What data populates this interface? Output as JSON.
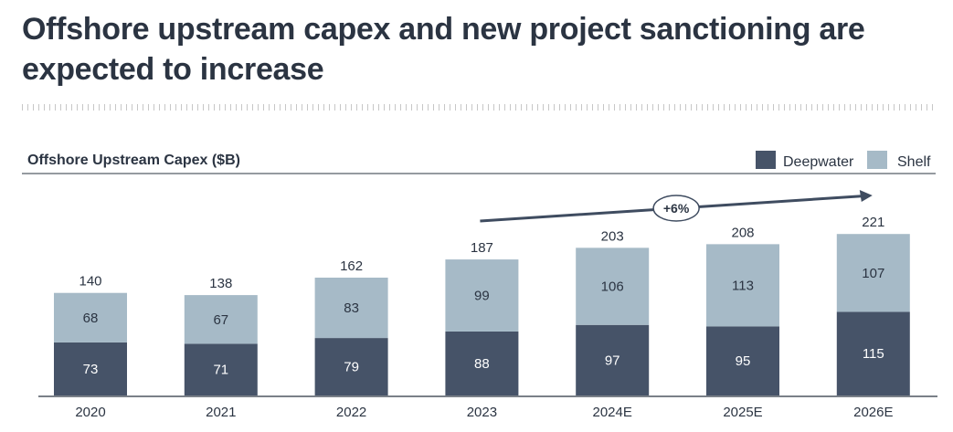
{
  "page": {
    "title": "Offshore upstream capex and new project sanctioning are expected to increase"
  },
  "chart_data": {
    "type": "bar",
    "stacked": true,
    "title": "Offshore Upstream Capex ($B)",
    "categories": [
      "2020",
      "2021",
      "2022",
      "2023",
      "2024E",
      "2025E",
      "2026E"
    ],
    "series": [
      {
        "name": "Deepwater",
        "color": "#465368",
        "values": [
          73,
          71,
          79,
          88,
          97,
          95,
          115
        ]
      },
      {
        "name": "Shelf",
        "color": "#a6bac7",
        "values": [
          68,
          67,
          83,
          99,
          106,
          113,
          107
        ]
      }
    ],
    "totals": [
      140,
      138,
      162,
      187,
      203,
      208,
      221
    ],
    "ylim": [
      0,
      221
    ],
    "legend_position": "top-right",
    "grid": false,
    "annotation": {
      "label": "+6%",
      "from_category": "2023",
      "to_category": "2026E"
    }
  }
}
